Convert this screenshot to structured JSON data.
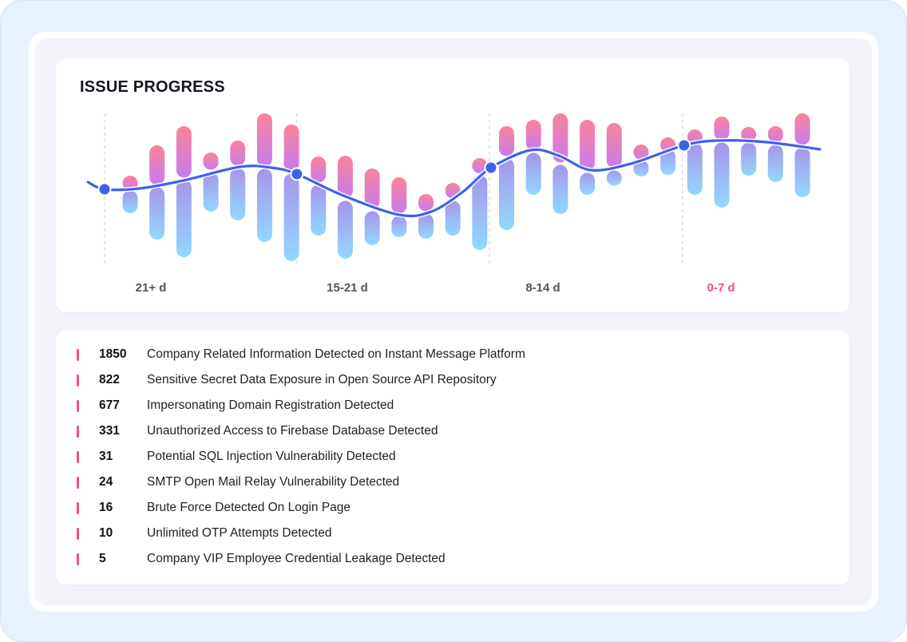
{
  "title": "ISSUE PROGRESS",
  "colors": {
    "accent_line": "#3b63e8",
    "pink_top": "#fb8399",
    "purple_mid": "#c67cf0",
    "lavender": "#a894ea",
    "sky_bottom": "#92d8ff",
    "marker": "#f0517a",
    "active_label": "#f0517a"
  },
  "chart_data": {
    "type": "bar",
    "title": "ISSUE PROGRESS",
    "xlabel": "",
    "ylabel": "",
    "ylim": [
      0,
      200
    ],
    "grid": false,
    "categories": [
      "21+ d",
      "15-21 d",
      "8-14 d",
      "0-7 d"
    ],
    "active_category": "0-7 d",
    "category_boundaries": [
      -0.95,
      6.2,
      13.36,
      20.54
    ],
    "bars": [
      {
        "top": 115,
        "split": 98,
        "bottom": 68
      },
      {
        "top": 153,
        "split": 102,
        "bottom": 35
      },
      {
        "top": 177,
        "split": 111,
        "bottom": 13
      },
      {
        "top": 144,
        "split": 121,
        "bottom": 70
      },
      {
        "top": 159,
        "split": 126,
        "bottom": 59
      },
      {
        "top": 193,
        "split": 125,
        "bottom": 32
      },
      {
        "top": 179,
        "split": 119,
        "bottom": 8
      },
      {
        "top": 139,
        "split": 105,
        "bottom": 40
      },
      {
        "top": 140,
        "split": 85,
        "bottom": 11
      },
      {
        "top": 124,
        "split": 72,
        "bottom": 28
      },
      {
        "top": 113,
        "split": 66,
        "bottom": 38
      },
      {
        "top": 92,
        "split": 69,
        "bottom": 36
      },
      {
        "top": 106,
        "split": 85,
        "bottom": 40
      },
      {
        "top": 137,
        "split": 117,
        "bottom": 22
      },
      {
        "top": 177,
        "split": 138,
        "bottom": 47
      },
      {
        "top": 185,
        "split": 145,
        "bottom": 91
      },
      {
        "top": 193,
        "split": 130,
        "bottom": 67
      },
      {
        "top": 185,
        "split": 120,
        "bottom": 91
      },
      {
        "top": 181,
        "split": 123,
        "bottom": 103
      },
      {
        "top": 154,
        "split": 136,
        "bottom": 114
      },
      {
        "top": 163,
        "split": 150,
        "bottom": 116
      },
      {
        "top": 173,
        "split": 157,
        "bottom": 91
      },
      {
        "top": 189,
        "split": 158,
        "bottom": 75
      },
      {
        "top": 176,
        "split": 158,
        "bottom": 115
      },
      {
        "top": 177,
        "split": 155,
        "bottom": 107
      },
      {
        "top": 193,
        "split": 152,
        "bottom": 88
      }
    ],
    "trend_line": [
      [
        -1.57,
        107
      ],
      [
        -0.95,
        98
      ],
      [
        0.36,
        99
      ],
      [
        1.99,
        109
      ],
      [
        4.07,
        126
      ],
      [
        5.26,
        125
      ],
      [
        6.2,
        117
      ],
      [
        7.93,
        90
      ],
      [
        10.0,
        66
      ],
      [
        11.2,
        70
      ],
      [
        12.38,
        95
      ],
      [
        13.42,
        125
      ],
      [
        14.9,
        147
      ],
      [
        15.94,
        140
      ],
      [
        17.13,
        122
      ],
      [
        18.62,
        130
      ],
      [
        20.6,
        153
      ],
      [
        21.88,
        159
      ],
      [
        23.66,
        157
      ],
      [
        25.65,
        148
      ]
    ],
    "trend_markers": [
      [
        -0.95,
        98
      ],
      [
        6.2,
        117
      ],
      [
        13.42,
        125
      ],
      [
        20.6,
        153
      ]
    ]
  },
  "issues": [
    {
      "count": "1850",
      "label": "Company Related Information Detected on Instant Message Platform"
    },
    {
      "count": "822",
      "label": "Sensitive Secret Data Exposure in Open Source API Repository"
    },
    {
      "count": "677",
      "label": "Impersonating Domain Registration Detected"
    },
    {
      "count": "331",
      "label": "Unauthorized Access to Firebase Database Detected"
    },
    {
      "count": "31",
      "label": "Potential SQL Injection Vulnerability Detected"
    },
    {
      "count": "24",
      "label": "SMTP Open Mail Relay Vulnerability Detected"
    },
    {
      "count": "16",
      "label": "Brute Force Detected On Login Page"
    },
    {
      "count": "10",
      "label": "Unlimited OTP Attempts Detected"
    },
    {
      "count": "5",
      "label": "Company VIP Employee Credential Leakage Detected"
    }
  ]
}
